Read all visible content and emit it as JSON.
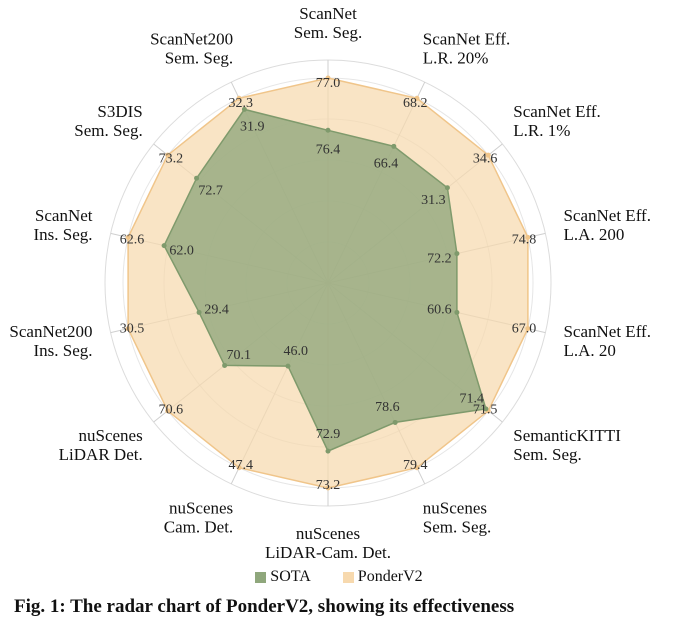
{
  "chart_data": {
    "type": "radar",
    "categories": [
      [
        "ScanNet",
        "Sem. Seg."
      ],
      [
        "ScanNet Eff.",
        "L.R. 20%"
      ],
      [
        "ScanNet Eff.",
        "L.R. 1%"
      ],
      [
        "ScanNet Eff.",
        "L.A. 200"
      ],
      [
        "ScanNet Eff.",
        "L.A. 20"
      ],
      [
        "SemanticKITTI",
        "Sem. Seg."
      ],
      [
        "nuScenes",
        "Sem. Seg."
      ],
      [
        "nuScenes",
        "LiDAR-Cam. Det."
      ],
      [
        "nuScenes",
        "Cam. Det."
      ],
      [
        "nuScenes",
        "LiDAR Det."
      ],
      [
        "ScanNet200",
        "Ins. Seg."
      ],
      [
        "ScanNet",
        "Ins. Seg."
      ],
      [
        "S3DIS",
        "Sem. Seg."
      ],
      [
        "ScanNet200",
        "Sem. Seg."
      ]
    ],
    "series": [
      {
        "name": "SOTA",
        "color": "#8fa77c",
        "values": [
          "76.4",
          "66.4",
          "31.3",
          "72.2",
          "60.6",
          "71.4",
          "78.6",
          "72.9",
          "46.0",
          "70.1",
          "29.4",
          "62.0",
          "72.7",
          "31.9"
        ],
        "normalized": [
          0.745,
          0.74,
          0.745,
          0.645,
          0.645,
          0.985,
          0.755,
          0.82,
          0.45,
          0.645,
          0.645,
          0.82,
          0.82,
          0.94
        ]
      },
      {
        "name": "PonderV2",
        "color": "#f7d9ae",
        "values": [
          "77.0",
          "68.2",
          "34.6",
          "74.8",
          "67.0",
          "71.5",
          "79.4",
          "73.2",
          "47.4",
          "70.6",
          "30.5",
          "62.6",
          "73.2",
          "32.3"
        ],
        "normalized": [
          1,
          1,
          1,
          1,
          1,
          1,
          1,
          1,
          1,
          1,
          1,
          1,
          1,
          1
        ]
      }
    ],
    "legend": [
      "SOTA",
      "PonderV2"
    ],
    "legend_position": "bottom-center",
    "rings": 5,
    "grid": true
  },
  "caption": "Fig. 1: The radar chart of PonderV2, showing its effectiveness"
}
